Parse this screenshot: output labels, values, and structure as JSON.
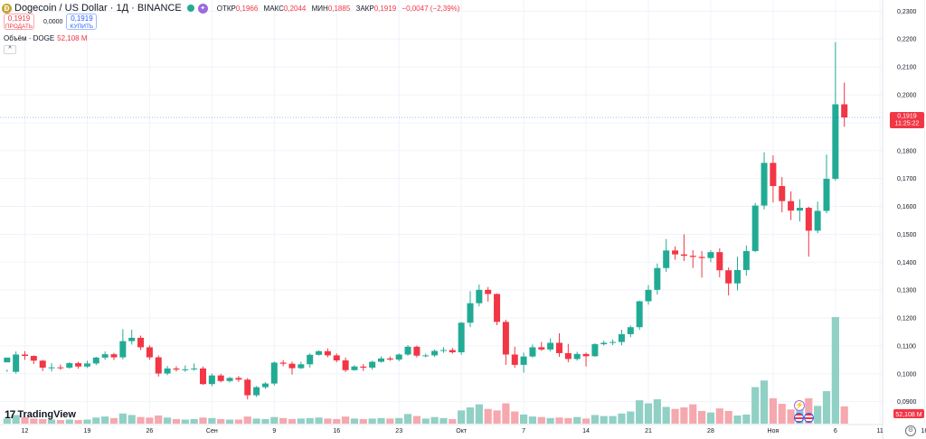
{
  "header": {
    "coin_icon": "dogecoin-coin-icon",
    "symbol": "Dogecoin / US Dollar · 1Д · BINANCE",
    "open_label": "ОТКР",
    "open": "0,1966",
    "high_label": "МАКС",
    "high": "0,2044",
    "low_label": "МИН",
    "low": "0,1885",
    "close_label": "ЗАКР",
    "close": "0,1919",
    "change": "−0,0047 (−2,39%)"
  },
  "trade": {
    "sell_price": "0,1919",
    "sell_label": "ПРОДАТЬ",
    "spread": "0,0000",
    "buy_price": "0,1919",
    "buy_label": "КУПИТЬ"
  },
  "volume_legend": {
    "label": "Объём · DOGE",
    "value": "52,108 M"
  },
  "collapse_glyph": "^",
  "branding": {
    "mark": "17",
    "word": "TradingView"
  },
  "event_lightning": "⚡",
  "settings_glyph": "⚙",
  "colors": {
    "up": "#22ab94",
    "down": "#f23645",
    "up_volume": "#90d0c5",
    "down_volume": "#f5a8ae",
    "axis_text": "#131722",
    "grid": "#f0f3fa"
  },
  "chart_data": {
    "type": "candlestick",
    "price_axis": {
      "ticks": [
        "0,2300",
        "0,2200",
        "0,2100",
        "0,2000",
        "0,1900",
        "0,1800",
        "0,1700",
        "0,1600",
        "0,1500",
        "0,1400",
        "0,1300",
        "0,1200",
        "0,1100",
        "0,1000",
        "0,0900"
      ],
      "tick_values": [
        0.23,
        0.22,
        0.21,
        0.2,
        0.19,
        0.18,
        0.17,
        0.16,
        0.15,
        0.14,
        0.13,
        0.12,
        0.11,
        0.1,
        0.09
      ],
      "range": [
        0.0818,
        0.234
      ],
      "current_price": 0.1919,
      "current_price_label": "0,1919",
      "countdown_label": "11:25:22",
      "volume_label": "52,108 M"
    },
    "time_axis": {
      "labels": [
        "12",
        "19",
        "26",
        "Сен",
        "9",
        "16",
        "23",
        "Окт",
        "7",
        "14",
        "21",
        "28",
        "Ноя",
        "6",
        "11",
        "16"
      ],
      "label_indices": [
        2,
        9,
        16,
        23,
        30,
        37,
        44,
        51,
        58,
        65,
        72,
        79,
        86,
        93,
        98,
        103
      ]
    },
    "candles": [
      [
        0.1041,
        0.1058,
        0.1015,
        0.1007
      ],
      [
        0.1007,
        0.1069,
        0.108,
        0.1001
      ],
      [
        0.1069,
        0.1064,
        0.1081,
        0.105
      ],
      [
        0.1064,
        0.1047,
        0.1066,
        0.1035
      ],
      [
        0.1047,
        0.1022,
        0.105,
        0.101
      ],
      [
        0.1022,
        0.1023,
        0.1038,
        0.1008
      ],
      [
        0.1023,
        0.1022,
        0.1033,
        0.1014
      ],
      [
        0.1022,
        0.1038,
        0.1042,
        0.1018
      ],
      [
        0.1038,
        0.1026,
        0.1043,
        0.1018
      ],
      [
        0.1026,
        0.1037,
        0.1047,
        0.1021
      ],
      [
        0.1037,
        0.1058,
        0.1061,
        0.1031
      ],
      [
        0.1058,
        0.107,
        0.108,
        0.105
      ],
      [
        0.107,
        0.1059,
        0.1075,
        0.1049
      ],
      [
        0.1059,
        0.1117,
        0.116,
        0.1052
      ],
      [
        0.1117,
        0.1129,
        0.1158,
        0.1105
      ],
      [
        0.1129,
        0.1095,
        0.1137,
        0.1085
      ],
      [
        0.1095,
        0.1059,
        0.1102,
        0.105
      ],
      [
        0.1059,
        0.1001,
        0.1066,
        0.099
      ],
      [
        0.1001,
        0.1019,
        0.1028,
        0.0995
      ],
      [
        0.1019,
        0.1015,
        0.1027,
        0.1008
      ],
      [
        0.1015,
        0.1016,
        0.103,
        0.1007
      ],
      [
        0.1016,
        0.1019,
        0.1037,
        0.1011
      ],
      [
        0.1019,
        0.0963,
        0.1026,
        0.096
      ],
      [
        0.0963,
        0.0994,
        0.1001,
        0.0955
      ],
      [
        0.0994,
        0.0974,
        0.1,
        0.0969
      ],
      [
        0.0974,
        0.0985,
        0.0989,
        0.0969
      ],
      [
        0.0985,
        0.0979,
        0.0992,
        0.0971
      ],
      [
        0.0979,
        0.0923,
        0.0985,
        0.0908
      ],
      [
        0.0923,
        0.0952,
        0.0956,
        0.0917
      ],
      [
        0.0952,
        0.0965,
        0.097,
        0.0946
      ],
      [
        0.0965,
        0.104,
        0.1044,
        0.0958
      ],
      [
        0.104,
        0.1036,
        0.1049,
        0.1027
      ],
      [
        0.1036,
        0.102,
        0.1044,
        0.0997
      ],
      [
        0.102,
        0.1034,
        0.1043,
        0.1017
      ],
      [
        0.1034,
        0.1068,
        0.1073,
        0.1022
      ],
      [
        0.1068,
        0.1081,
        0.1084,
        0.1065
      ],
      [
        0.1081,
        0.1066,
        0.1091,
        0.1059
      ],
      [
        0.1066,
        0.1048,
        0.1073,
        0.1041
      ],
      [
        0.1048,
        0.1013,
        0.1058,
        0.1006
      ],
      [
        0.1013,
        0.1026,
        0.1031,
        0.1011
      ],
      [
        0.1026,
        0.1022,
        0.1035,
        0.101
      ],
      [
        0.1022,
        0.1043,
        0.1047,
        0.1015
      ],
      [
        0.1043,
        0.1055,
        0.1062,
        0.104
      ],
      [
        0.1055,
        0.1051,
        0.1062,
        0.1046
      ],
      [
        0.1051,
        0.1069,
        0.1073,
        0.1045
      ],
      [
        0.1069,
        0.1097,
        0.1103,
        0.1064
      ],
      [
        0.1097,
        0.1065,
        0.1101,
        0.1059
      ],
      [
        0.1065,
        0.1066,
        0.1072,
        0.1059
      ],
      [
        0.1066,
        0.1082,
        0.1087,
        0.106
      ],
      [
        0.1082,
        0.1085,
        0.1095,
        0.1075
      ],
      [
        0.1085,
        0.1077,
        0.1093,
        0.1072
      ],
      [
        0.1077,
        0.1183,
        0.1186,
        0.1068
      ],
      [
        0.1183,
        0.1253,
        0.1296,
        0.1167
      ],
      [
        0.1253,
        0.1301,
        0.132,
        0.1242
      ],
      [
        0.1301,
        0.1286,
        0.1311,
        0.1259
      ],
      [
        0.1286,
        0.1186,
        0.1288,
        0.1174
      ],
      [
        0.1186,
        0.1069,
        0.1194,
        0.1032
      ],
      [
        0.1069,
        0.1032,
        0.1097,
        0.1022
      ],
      [
        0.1032,
        0.1062,
        0.1076,
        0.1004
      ],
      [
        0.1062,
        0.1095,
        0.1105,
        0.1058
      ],
      [
        0.1095,
        0.1087,
        0.1114,
        0.1082
      ],
      [
        0.1087,
        0.1111,
        0.1127,
        0.108
      ],
      [
        0.1111,
        0.1074,
        0.1145,
        0.1061
      ],
      [
        0.1074,
        0.1053,
        0.1107,
        0.1041
      ],
      [
        0.1053,
        0.1071,
        0.1079,
        0.1047
      ],
      [
        0.1071,
        0.1063,
        0.1076,
        0.1026
      ],
      [
        0.1063,
        0.1106,
        0.111,
        0.1061
      ],
      [
        0.1106,
        0.1111,
        0.1119,
        0.1101
      ],
      [
        0.1111,
        0.1114,
        0.1123,
        0.1103
      ],
      [
        0.1114,
        0.1142,
        0.1158,
        0.1102
      ],
      [
        0.1142,
        0.1167,
        0.1173,
        0.1131
      ],
      [
        0.1167,
        0.126,
        0.1262,
        0.1157
      ],
      [
        0.126,
        0.1301,
        0.1318,
        0.1248
      ],
      [
        0.1301,
        0.1379,
        0.1395,
        0.1284
      ],
      [
        0.1379,
        0.1442,
        0.1483,
        0.1365
      ],
      [
        0.1442,
        0.1428,
        0.1457,
        0.1409
      ],
      [
        0.1428,
        0.1423,
        0.15,
        0.1404
      ],
      [
        0.1423,
        0.1419,
        0.1443,
        0.1379
      ],
      [
        0.1419,
        0.1415,
        0.144,
        0.1345
      ],
      [
        0.1415,
        0.1436,
        0.1443,
        0.14
      ],
      [
        0.1436,
        0.1371,
        0.145,
        0.1346
      ],
      [
        0.1371,
        0.1324,
        0.1381,
        0.1281
      ],
      [
        0.1324,
        0.1372,
        0.142,
        0.1299
      ],
      [
        0.1372,
        0.144,
        0.146,
        0.1352
      ],
      [
        0.144,
        0.1603,
        0.1612,
        0.1436
      ],
      [
        0.1603,
        0.1756,
        0.1794,
        0.1589
      ],
      [
        0.1756,
        0.1673,
        0.1783,
        0.1614
      ],
      [
        0.1673,
        0.1619,
        0.1705,
        0.1579
      ],
      [
        0.1619,
        0.1585,
        0.1654,
        0.1551
      ],
      [
        0.1585,
        0.1595,
        0.1626,
        0.1546
      ],
      [
        0.1595,
        0.1513,
        0.1599,
        0.142
      ],
      [
        0.1513,
        0.1584,
        0.1617,
        0.1504
      ],
      [
        0.1584,
        0.1699,
        0.1786,
        0.1575
      ],
      [
        0.1699,
        0.1966,
        0.2189,
        0.1692
      ],
      [
        0.1966,
        0.1919,
        0.2044,
        0.1885
      ]
    ],
    "volumes": [
      0.1,
      0.17,
      0.13,
      0.1,
      0.09,
      0.08,
      0.07,
      0.08,
      0.07,
      0.08,
      0.12,
      0.14,
      0.11,
      0.2,
      0.17,
      0.13,
      0.12,
      0.16,
      0.12,
      0.09,
      0.08,
      0.09,
      0.12,
      0.11,
      0.09,
      0.08,
      0.08,
      0.14,
      0.1,
      0.09,
      0.13,
      0.11,
      0.09,
      0.1,
      0.11,
      0.12,
      0.1,
      0.09,
      0.14,
      0.1,
      0.09,
      0.1,
      0.11,
      0.1,
      0.11,
      0.19,
      0.15,
      0.1,
      0.13,
      0.11,
      0.09,
      0.26,
      0.32,
      0.38,
      0.29,
      0.26,
      0.4,
      0.24,
      0.18,
      0.14,
      0.13,
      0.11,
      0.12,
      0.11,
      0.13,
      0.1,
      0.17,
      0.15,
      0.15,
      0.2,
      0.24,
      0.46,
      0.4,
      0.48,
      0.33,
      0.29,
      0.32,
      0.38,
      0.25,
      0.22,
      0.3,
      0.25,
      0.16,
      0.18,
      0.72,
      0.85,
      0.5,
      0.39,
      0.28,
      0.35,
      0.5,
      0.35,
      0.64,
      2.1,
      0.34
    ],
    "volume_scale_max": 2.1
  }
}
